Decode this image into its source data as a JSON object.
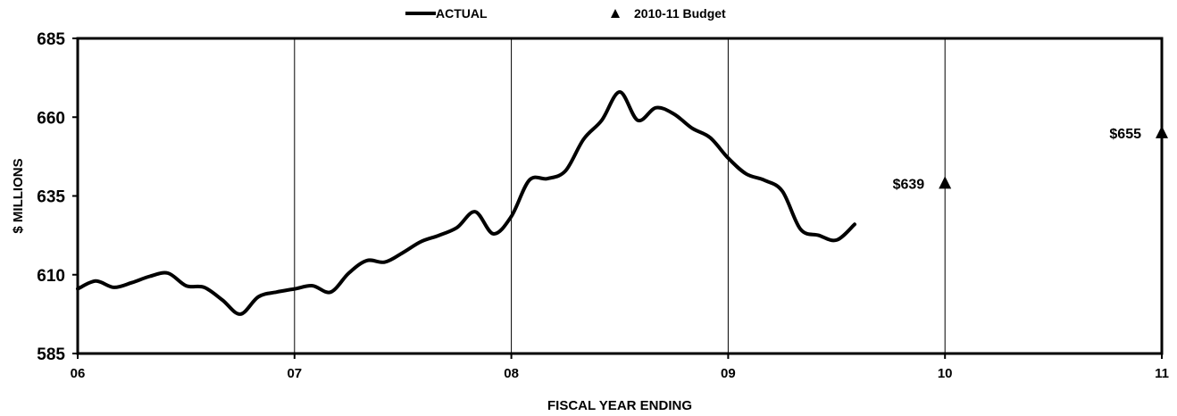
{
  "chart_data": {
    "type": "line",
    "title": "",
    "xlabel": "FISCAL YEAR ENDING",
    "ylabel": "$ MILLIONS",
    "xlim": [
      6,
      11
    ],
    "ylim": [
      585,
      685
    ],
    "x_ticks": [
      6,
      7,
      8,
      9,
      10,
      11
    ],
    "x_tick_labels": [
      "06",
      "07",
      "08",
      "09",
      "10",
      "11"
    ],
    "y_ticks": [
      585,
      610,
      635,
      660,
      685
    ],
    "y_tick_labels": [
      "585",
      "610",
      "635",
      "660",
      "685"
    ],
    "grid": "vertical lines at each fiscal year",
    "legend_position": "top-center",
    "legend": [
      {
        "label": "ACTUAL",
        "symbol": "line"
      },
      {
        "label": "2010-11 Budget",
        "symbol": "triangle"
      }
    ],
    "series": [
      {
        "name": "ACTUAL",
        "type": "line",
        "color": "#000000",
        "x": [
          6.0,
          6.083,
          6.167,
          6.25,
          6.333,
          6.417,
          6.5,
          6.583,
          6.667,
          6.75,
          6.833,
          6.917,
          7.0,
          7.083,
          7.167,
          7.25,
          7.333,
          7.417,
          7.5,
          7.583,
          7.667,
          7.75,
          7.833,
          7.917,
          8.0,
          8.083,
          8.167,
          8.25,
          8.333,
          8.417,
          8.5,
          8.583,
          8.667,
          8.75,
          8.833,
          8.917,
          9.0,
          9.083,
          9.167,
          9.25,
          9.333,
          9.417,
          9.5,
          9.583
        ],
        "values": [
          605.5,
          608.0,
          606.0,
          607.5,
          609.5,
          610.5,
          606.5,
          606.0,
          602.0,
          597.5,
          603.0,
          604.5,
          605.5,
          606.5,
          604.5,
          610.5,
          614.5,
          614.0,
          617.0,
          620.5,
          622.5,
          625.0,
          630.0,
          623.0,
          628.5,
          640.0,
          640.5,
          643.0,
          653.0,
          659.0,
          668.0,
          659.0,
          663.0,
          661.0,
          656.5,
          653.5,
          647.0,
          642.0,
          640.0,
          636.5,
          624.5,
          622.5,
          621.0,
          626.0
        ]
      },
      {
        "name": "2010-11 Budget",
        "type": "scatter",
        "marker": "triangle",
        "color": "#000000",
        "x": [
          10,
          11
        ],
        "values": [
          639,
          655
        ],
        "labels": [
          "$639",
          "$655"
        ]
      }
    ]
  }
}
